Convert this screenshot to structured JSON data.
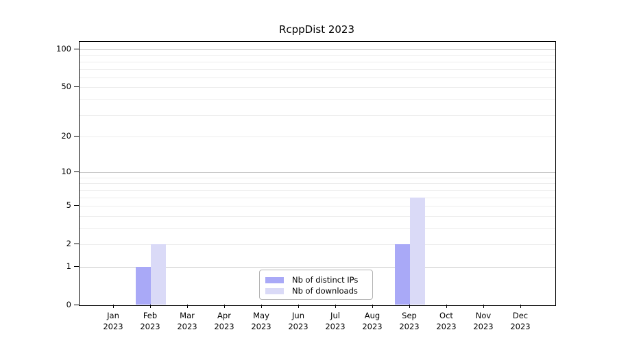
{
  "figure": {
    "title": "RcppDist 2023"
  },
  "chart_data": {
    "type": "bar",
    "title": "RcppDist 2023",
    "categories": [
      "Jan",
      "Feb",
      "Mar",
      "Apr",
      "May",
      "Jun",
      "Jul",
      "Aug",
      "Sep",
      "Oct",
      "Nov",
      "Dec"
    ],
    "year": "2023",
    "series": [
      {
        "name": "Nb of distinct IPs",
        "color": "#a9a9f7",
        "values": [
          0,
          1,
          0,
          0,
          0,
          0,
          0,
          0,
          2,
          0,
          0,
          0
        ]
      },
      {
        "name": "Nb of downloads",
        "color": "#dadaf7",
        "values": [
          0,
          2,
          0,
          0,
          0,
          0,
          0,
          0,
          6,
          0,
          0,
          0
        ]
      }
    ],
    "yscale": "log1p",
    "ylim": [
      0,
      115
    ],
    "yticks": [
      0,
      1,
      2,
      5,
      10,
      20,
      50,
      100
    ],
    "major_gridlines": [
      1,
      10,
      100
    ],
    "minor_gridlines": [
      2,
      3,
      4,
      5,
      6,
      7,
      8,
      9,
      20,
      30,
      40,
      50,
      60,
      70,
      80,
      90
    ],
    "grid": "horizontal",
    "legend": {
      "position": "lower-center-inside",
      "entries": [
        "Nb of distinct IPs",
        "Nb of downloads"
      ]
    }
  },
  "colors": {
    "bar_distinct_ips": "#a9a9f7",
    "bar_downloads": "#dadaf7",
    "major_grid": "#c9c9c9",
    "minor_grid": "#ededed",
    "axis": "#000000",
    "legend_border": "#b3b3b3",
    "background": "#ffffff"
  }
}
